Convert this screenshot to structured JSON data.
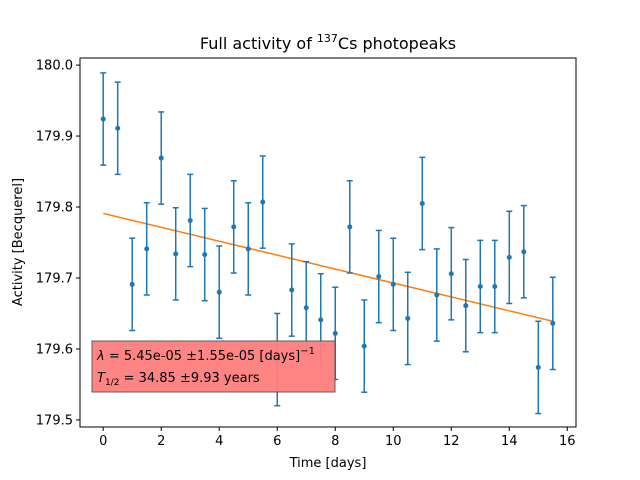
{
  "chart_data": {
    "type": "scatter",
    "title": {
      "prefix": "Full activity of ",
      "superscript": "137",
      "suffix": "Cs photopeaks"
    },
    "xlabel": "Time [days]",
    "ylabel": "Activity [Becquerel]",
    "xlim": [
      -0.8,
      16.3
    ],
    "ylim": [
      179.49,
      180.01
    ],
    "x_ticks": [
      0,
      2,
      4,
      6,
      8,
      10,
      12,
      14,
      16
    ],
    "y_ticks": [
      179.5,
      179.6,
      179.7,
      179.8,
      179.9,
      180.0
    ],
    "y_tick_labels": [
      "179.5",
      "179.6",
      "179.7",
      "179.8",
      "179.9",
      "180.0"
    ],
    "grid": false,
    "series": [
      {
        "kind": "errorbar",
        "color": "#1f77b4",
        "x": [
          0,
          0.5,
          1,
          1.5,
          2,
          2.5,
          3,
          3.5,
          4,
          4.5,
          5,
          5.5,
          6,
          6.5,
          7,
          7.5,
          8,
          8.5,
          9,
          9.5,
          10,
          10.5,
          11,
          11.5,
          12,
          12.5,
          13,
          13.5,
          14,
          14.5,
          15,
          15.5
        ],
        "y": [
          179.924,
          179.911,
          179.691,
          179.741,
          179.869,
          179.734,
          179.781,
          179.733,
          179.68,
          179.772,
          179.741,
          179.807,
          179.585,
          179.683,
          179.658,
          179.641,
          179.622,
          179.772,
          179.604,
          179.702,
          179.691,
          179.643,
          179.805,
          179.676,
          179.706,
          179.661,
          179.688,
          179.688,
          179.729,
          179.737,
          179.574,
          179.636
        ],
        "yerr": [
          0.065,
          0.065,
          0.065,
          0.065,
          0.065,
          0.065,
          0.065,
          0.065,
          0.065,
          0.065,
          0.065,
          0.065,
          0.065,
          0.065,
          0.065,
          0.065,
          0.065,
          0.065,
          0.065,
          0.065,
          0.065,
          0.065,
          0.065,
          0.065,
          0.065,
          0.065,
          0.065,
          0.065,
          0.065,
          0.065,
          0.065,
          0.065
        ]
      },
      {
        "kind": "line",
        "color": "#ff7f0e",
        "x": [
          0,
          15.5
        ],
        "y": [
          179.791,
          179.639
        ]
      }
    ],
    "annotation": {
      "line1": {
        "symbol": "λ",
        "text": " = 5.45e-05 ±1.55e-05 [days]",
        "superscript": "−1"
      },
      "line2": {
        "symbol": "T",
        "subscript": "1/2",
        "text": " = 34.85 ±9.93 years"
      },
      "placement": "lower-left",
      "background": "#ff7f7f"
    }
  }
}
